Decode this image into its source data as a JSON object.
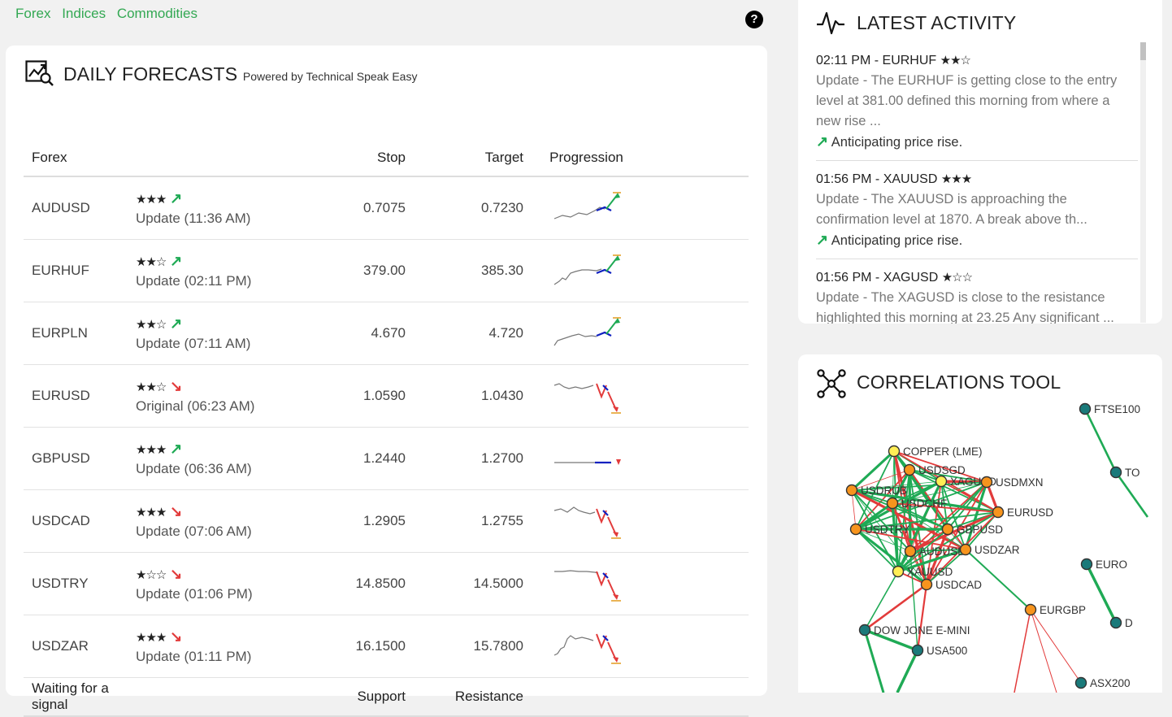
{
  "nav": [
    "Forex",
    "Indices",
    "Commodities"
  ],
  "help_label": "?",
  "forecast": {
    "title": "DAILY FORECASTS",
    "subtitle": "Powered by Technical Speak Easy",
    "headers": {
      "col1": "Forex",
      "stop": "Stop",
      "target": "Target",
      "progression": "Progression"
    },
    "rows": [
      {
        "pair": "AUDUSD",
        "stars": "★★★",
        "dir": "up",
        "status": "Update (11:36 AM)",
        "stop": "0.7075",
        "target": "0.7230"
      },
      {
        "pair": "EURHUF",
        "stars": "★★☆",
        "dir": "up",
        "status": "Update (02:11 PM)",
        "stop": "379.00",
        "target": "385.30"
      },
      {
        "pair": "EURPLN",
        "stars": "★★☆",
        "dir": "up",
        "status": "Update (07:11 AM)",
        "stop": "4.670",
        "target": "4.720"
      },
      {
        "pair": "EURUSD",
        "stars": "★★☆",
        "dir": "down",
        "status": "Original (06:23 AM)",
        "stop": "1.0590",
        "target": "1.0430"
      },
      {
        "pair": "GBPUSD",
        "stars": "★★★",
        "dir": "up",
        "status": "Update (06:36 AM)",
        "stop": "1.2440",
        "target": "1.2700"
      },
      {
        "pair": "USDCAD",
        "stars": "★★★",
        "dir": "down",
        "status": "Update (07:06 AM)",
        "stop": "1.2905",
        "target": "1.2755"
      },
      {
        "pair": "USDTRY",
        "stars": "★☆☆",
        "dir": "down",
        "status": "Update (01:06 PM)",
        "stop": "14.8500",
        "target": "14.5000"
      },
      {
        "pair": "USDZAR",
        "stars": "★★★",
        "dir": "down",
        "status": "Update (01:11 PM)",
        "stop": "16.1500",
        "target": "15.7800"
      }
    ],
    "footer": {
      "col1": "Waiting for a signal",
      "support": "Support",
      "resistance": "Resistance"
    }
  },
  "activity": {
    "title": "LATEST ACTIVITY",
    "items": [
      {
        "head": "02:11 PM - EURHUF",
        "stars": "★★☆",
        "body": "Update - The EURHUF is getting close to the entry level at 381.00 defined this morning from where a new rise ...",
        "ant": "Anticipating price rise."
      },
      {
        "head": "01:56 PM - XAUUSD",
        "stars": "★★★",
        "body": "Update - The XAUUSD is approaching the confirmation level at 1870. A break above th...",
        "ant": "Anticipating price rise."
      },
      {
        "head": "01:56 PM - XAGUSD",
        "stars": "★☆☆",
        "body": "Update - The XAGUSD is close to the resistance highlighted this morning at 23.25 Any significant ...",
        "ant": ""
      }
    ]
  },
  "correlations": {
    "title": "CORRELATIONS TOOL",
    "nodes": [
      "FTSE100",
      "TO",
      "COPPER (LME)",
      "USDSGD",
      "XAGUSD",
      "USDMXN",
      "USDRUB",
      "USDCHF",
      "EURUSD",
      "USDTRY",
      "GBPUSD",
      "AUDUSD",
      "USDZAR",
      "XAUUSD",
      "USDCAD",
      "EURGBP",
      "EURO",
      "D",
      "DOW JONE E-MINI",
      "USA500",
      "ASX200"
    ]
  },
  "colors": {
    "accent": "#33a853",
    "up": "#1faa55",
    "down": "#e23b3b",
    "node_orange": "#f7941d",
    "node_yellow": "#ffee55",
    "node_teal": "#1a7a7a"
  }
}
